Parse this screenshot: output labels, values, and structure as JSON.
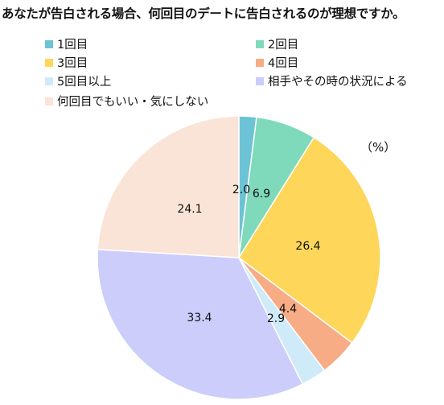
{
  "chart_data": {
    "type": "pie",
    "title": "あなたが告白される場合、何回目のデートに告白されるのが理想ですか。",
    "unit": "（%）",
    "slices": [
      {
        "label": "1回目",
        "value": 2.0,
        "color": "#6CC3D5"
      },
      {
        "label": "2回目",
        "value": 6.9,
        "color": "#7FD9BB"
      },
      {
        "label": "3回目",
        "value": 26.4,
        "color": "#FDD65A"
      },
      {
        "label": "4回目",
        "value": 4.4,
        "color": "#F7AC86"
      },
      {
        "label": "5回目以上",
        "value": 2.9,
        "color": "#CFEAF8"
      },
      {
        "label": "相手やその時の状況による",
        "value": 33.4,
        "color": "#CDCDFB"
      },
      {
        "label": "何回目でもいい・気にしない",
        "value": 24.1,
        "color": "#FAE4D7"
      }
    ],
    "data_labels": [
      "2.0",
      "6.9",
      "26.4",
      "4.4",
      "2.9",
      "33.4",
      "24.1"
    ],
    "legend_position": "top"
  }
}
